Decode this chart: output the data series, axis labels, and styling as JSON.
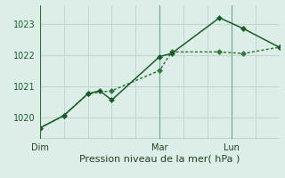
{
  "background_color": "#ddeee8",
  "grid_color": "#c0d8d0",
  "axis_color": "#2d6e3a",
  "line1_color": "#1a5c2a",
  "line2_color": "#2d7a3a",
  "line1_x": [
    0,
    2,
    4,
    5,
    6,
    10,
    11,
    15,
    17,
    20
  ],
  "line1_y": [
    1019.65,
    1020.05,
    1020.75,
    1020.85,
    1020.55,
    1021.95,
    1022.05,
    1023.2,
    1022.85,
    1022.25
  ],
  "line2_x": [
    0,
    2,
    4,
    6,
    10,
    11,
    15,
    17,
    20
  ],
  "line2_y": [
    1019.65,
    1020.05,
    1020.75,
    1020.85,
    1021.5,
    1022.1,
    1022.1,
    1022.05,
    1022.25
  ],
  "xlabel": "Pression niveau de la mer( hPa )",
  "yticks": [
    1020,
    1021,
    1022,
    1023
  ],
  "ylim": [
    1019.3,
    1023.6
  ],
  "xlim": [
    0,
    20
  ],
  "dim_x": 0,
  "mar_x": 10,
  "lun_x": 16,
  "vlines": [
    10,
    16
  ],
  "markersize": 3,
  "linewidth1": 1.1,
  "linewidth2": 1.1,
  "xlabel_fontsize": 8,
  "ytick_fontsize": 7,
  "xtick_fontsize": 7,
  "left_border_color": "#2d6e3a"
}
